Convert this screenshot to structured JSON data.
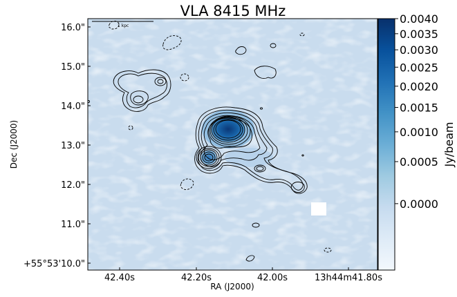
{
  "chart_data": {
    "type": "heatmap",
    "title": "VLA 8415 MHz",
    "xlabel": "RA (J2000)",
    "ylabel": "Dec (J2000)",
    "x_ticks": [
      "42.40s",
      "42.20s",
      "42.00s",
      "13h44m41.80s"
    ],
    "y_ticks": [
      "+55°53'10.0\"",
      "11.0\"",
      "12.0\"",
      "13.0\"",
      "14.0\"",
      "15.0\"",
      "16.0\""
    ],
    "colorbar": {
      "label": "Jy/beam",
      "ticks": [
        "0.0000",
        "0.0005",
        "0.0010",
        "0.0015",
        "0.0020",
        "0.0025",
        "0.0030",
        "0.0035",
        "0.0040"
      ],
      "range": [
        -0.0003,
        0.004
      ],
      "stretch": "sqrt-like",
      "colormap": [
        "#f3f8fd",
        "#deebf7",
        "#c6dbef",
        "#9ecae1",
        "#6baed6",
        "#4292c6",
        "#2171b5",
        "#08519c",
        "#08306b"
      ]
    },
    "scale_bar_label": "1 kpc",
    "background_color": "#c9dcee",
    "contour_color": "#000000"
  }
}
